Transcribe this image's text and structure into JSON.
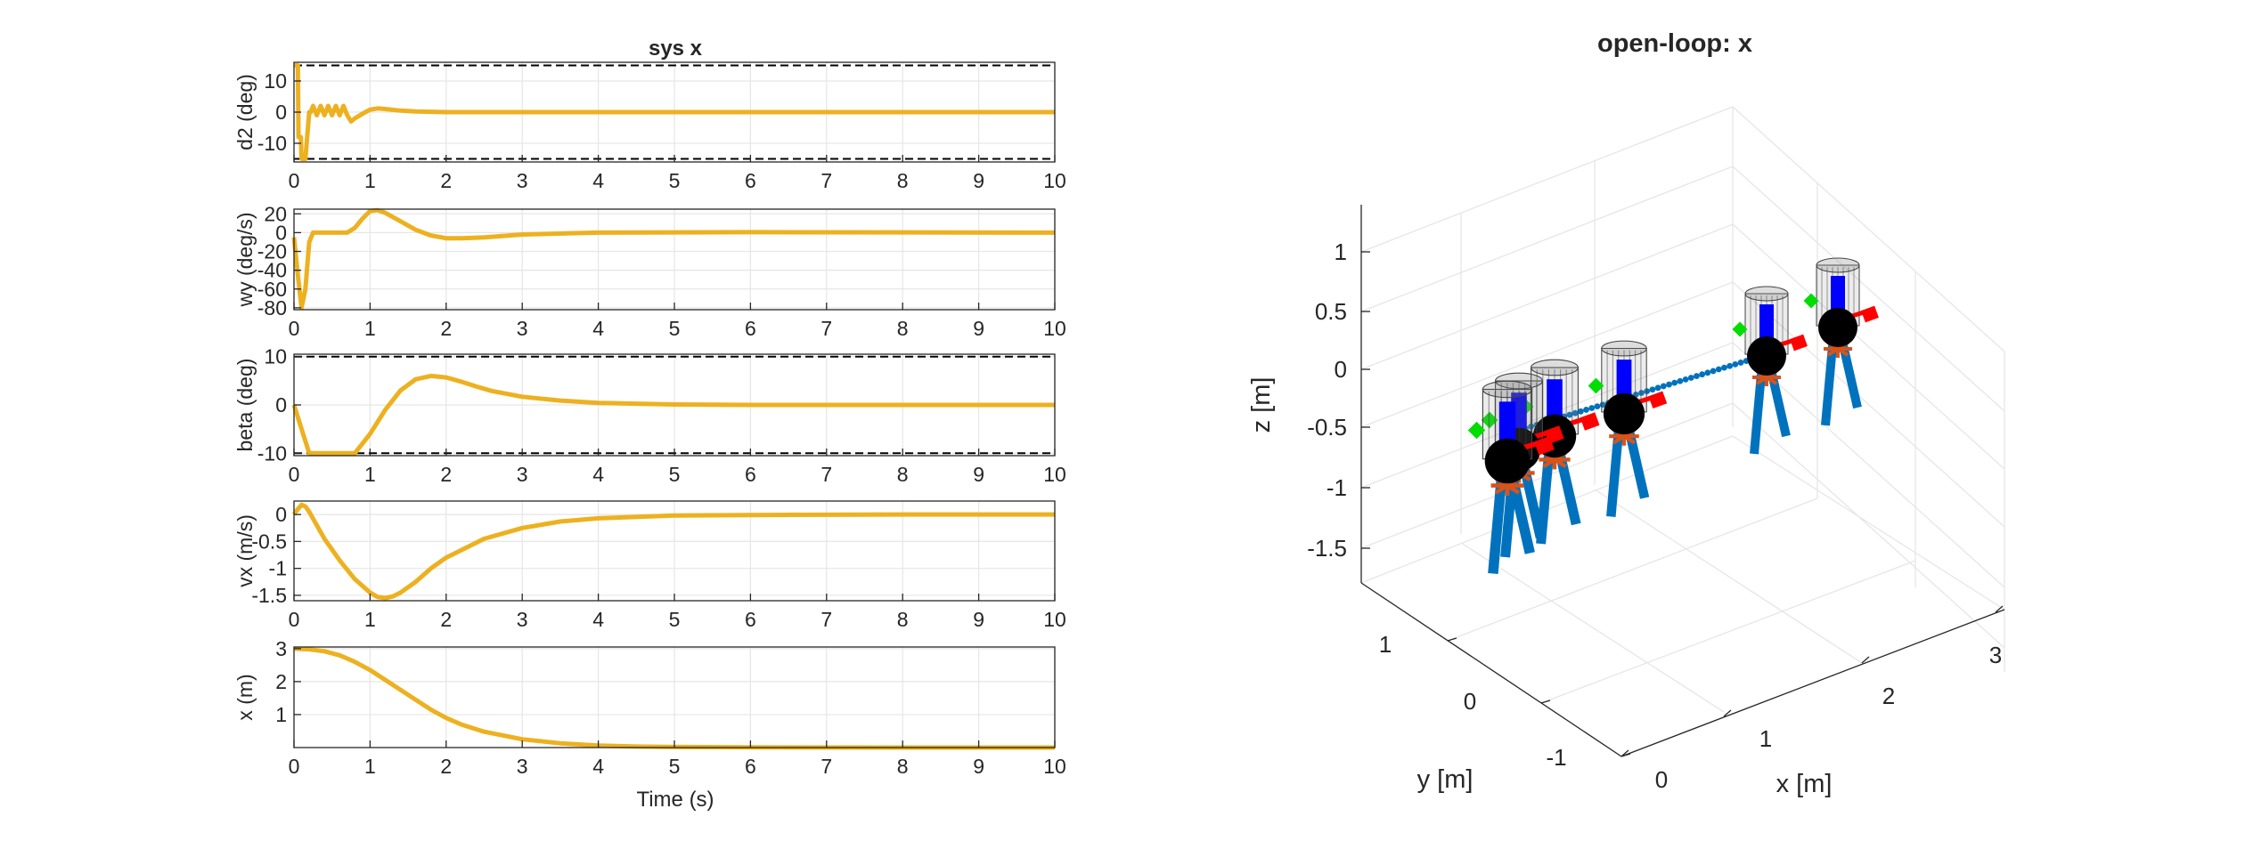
{
  "left_title": "sys x",
  "left_xlabel": "Time (s)",
  "right_title": "open-loop: x",
  "right_axes": {
    "xlabel": "x [m]",
    "ylabel": "y [m]",
    "zlabel": "z [m]",
    "x_ticks": [
      "0",
      "1",
      "2",
      "3"
    ],
    "y_ticks": [
      "-1",
      "0",
      "1"
    ],
    "z_ticks": [
      "1",
      "0.5",
      "0",
      "-0.5",
      "-1",
      "-1.5"
    ]
  },
  "colors": {
    "series": "#EDB120",
    "axis": "#262626",
    "grid": "#e6e6e6",
    "limit": "#000000",
    "leg": "#0072BD",
    "rotor": "#D95319",
    "marker_red": "#ff0000",
    "marker_green": "#00dd00",
    "marker_blue": "#0000ff",
    "trail": "#0072BD"
  },
  "chart_data": [
    {
      "type": "line",
      "title": "sys x",
      "xlabel": "",
      "ylabel": "d2 (deg)",
      "xlim": [
        0,
        10
      ],
      "ylim": [
        -16,
        16
      ],
      "yticks": [
        -10,
        0,
        10
      ],
      "xticks": [
        0,
        1,
        2,
        3,
        4,
        5,
        6,
        7,
        8,
        9,
        10
      ],
      "limits": [
        15,
        -15
      ],
      "series": [
        {
          "x": [
            0,
            0.05,
            0.06,
            0.09,
            0.1,
            0.15,
            0.2,
            0.22,
            0.25,
            0.3,
            0.35,
            0.4,
            0.45,
            0.5,
            0.55,
            0.6,
            0.65,
            0.7,
            0.75,
            0.8,
            0.9,
            1.0,
            1.1,
            1.2,
            1.4,
            1.6,
            2.0,
            3.0,
            10.0
          ],
          "y": [
            15,
            15,
            -8,
            -8,
            -15,
            -15,
            0,
            0,
            2,
            -1,
            2,
            -1,
            2,
            -1,
            2,
            -1,
            2,
            -1,
            -3,
            -2,
            -0.5,
            0.8,
            1.2,
            1.0,
            0.5,
            0.2,
            0,
            0,
            0
          ]
        }
      ]
    },
    {
      "type": "line",
      "ylabel": "wy (deg/s)",
      "xlim": [
        0,
        10
      ],
      "ylim": [
        -82,
        25
      ],
      "yticks": [
        -80,
        -60,
        -40,
        -20,
        0,
        20
      ],
      "xticks": [
        0,
        1,
        2,
        3,
        4,
        5,
        6,
        7,
        8,
        9,
        10
      ],
      "series": [
        {
          "x": [
            0,
            0.05,
            0.1,
            0.15,
            0.2,
            0.25,
            0.3,
            0.4,
            0.5,
            0.6,
            0.7,
            0.8,
            0.9,
            1.0,
            1.1,
            1.2,
            1.4,
            1.6,
            1.8,
            2.0,
            2.2,
            2.5,
            3.0,
            4.0,
            6.0,
            10.0
          ],
          "y": [
            -5,
            -45,
            -80,
            -60,
            -10,
            0,
            0,
            0,
            0,
            0,
            0,
            5,
            15,
            23,
            24,
            21,
            12,
            3,
            -3,
            -6,
            -6,
            -5,
            -2,
            0,
            0.5,
            0
          ]
        }
      ]
    },
    {
      "type": "line",
      "ylabel": "beta (deg)",
      "xlim": [
        0,
        10
      ],
      "ylim": [
        -10.5,
        10.5
      ],
      "yticks": [
        -10,
        0,
        10
      ],
      "xticks": [
        0,
        1,
        2,
        3,
        4,
        5,
        6,
        7,
        8,
        9,
        10
      ],
      "limits": [
        10,
        -10
      ],
      "series": [
        {
          "x": [
            0,
            0.1,
            0.2,
            0.3,
            0.8,
            1.0,
            1.2,
            1.4,
            1.6,
            1.8,
            2.0,
            2.2,
            2.4,
            2.6,
            3.0,
            3.5,
            4.0,
            5.0,
            6.0,
            10.0
          ],
          "y": [
            0,
            -5,
            -10,
            -10,
            -10,
            -6,
            -1,
            3,
            5.3,
            6,
            5.7,
            4.8,
            3.8,
            2.9,
            1.7,
            0.9,
            0.4,
            0.1,
            0,
            0
          ]
        }
      ]
    },
    {
      "type": "line",
      "ylabel": "vx (m/s)",
      "xlim": [
        0,
        10
      ],
      "ylim": [
        -1.6,
        0.25
      ],
      "yticks": [
        -1.5,
        -1,
        -0.5,
        0
      ],
      "xticks": [
        0,
        1,
        2,
        3,
        4,
        5,
        6,
        7,
        8,
        9,
        10
      ],
      "series": [
        {
          "x": [
            0,
            0.05,
            0.1,
            0.15,
            0.2,
            0.3,
            0.4,
            0.6,
            0.8,
            1.0,
            1.1,
            1.2,
            1.3,
            1.4,
            1.6,
            1.8,
            2.0,
            2.5,
            3.0,
            3.5,
            4.0,
            5.0,
            6.0,
            8.0,
            10.0
          ],
          "y": [
            0,
            0.1,
            0.18,
            0.15,
            0.05,
            -0.2,
            -0.45,
            -0.85,
            -1.2,
            -1.45,
            -1.53,
            -1.55,
            -1.52,
            -1.45,
            -1.25,
            -1.0,
            -0.8,
            -0.45,
            -0.25,
            -0.13,
            -0.07,
            -0.02,
            -0.01,
            0,
            0
          ]
        }
      ]
    },
    {
      "type": "line",
      "ylabel": "x (m)",
      "xlabel": "Time (s)",
      "xlim": [
        0,
        10
      ],
      "ylim": [
        0,
        3.05
      ],
      "yticks": [
        1,
        2,
        3
      ],
      "xticks": [
        0,
        1,
        2,
        3,
        4,
        5,
        6,
        7,
        8,
        9,
        10
      ],
      "series": [
        {
          "x": [
            0,
            0.2,
            0.4,
            0.6,
            0.8,
            1.0,
            1.2,
            1.4,
            1.6,
            1.8,
            2.0,
            2.2,
            2.5,
            3.0,
            3.5,
            4.0,
            4.5,
            5.0,
            6.0,
            8.0,
            10.0
          ],
          "y": [
            3,
            2.98,
            2.92,
            2.8,
            2.6,
            2.35,
            2.05,
            1.75,
            1.45,
            1.15,
            0.9,
            0.7,
            0.48,
            0.25,
            0.13,
            0.06,
            0.03,
            0.015,
            0.005,
            0,
            0
          ]
        }
      ]
    }
  ]
}
